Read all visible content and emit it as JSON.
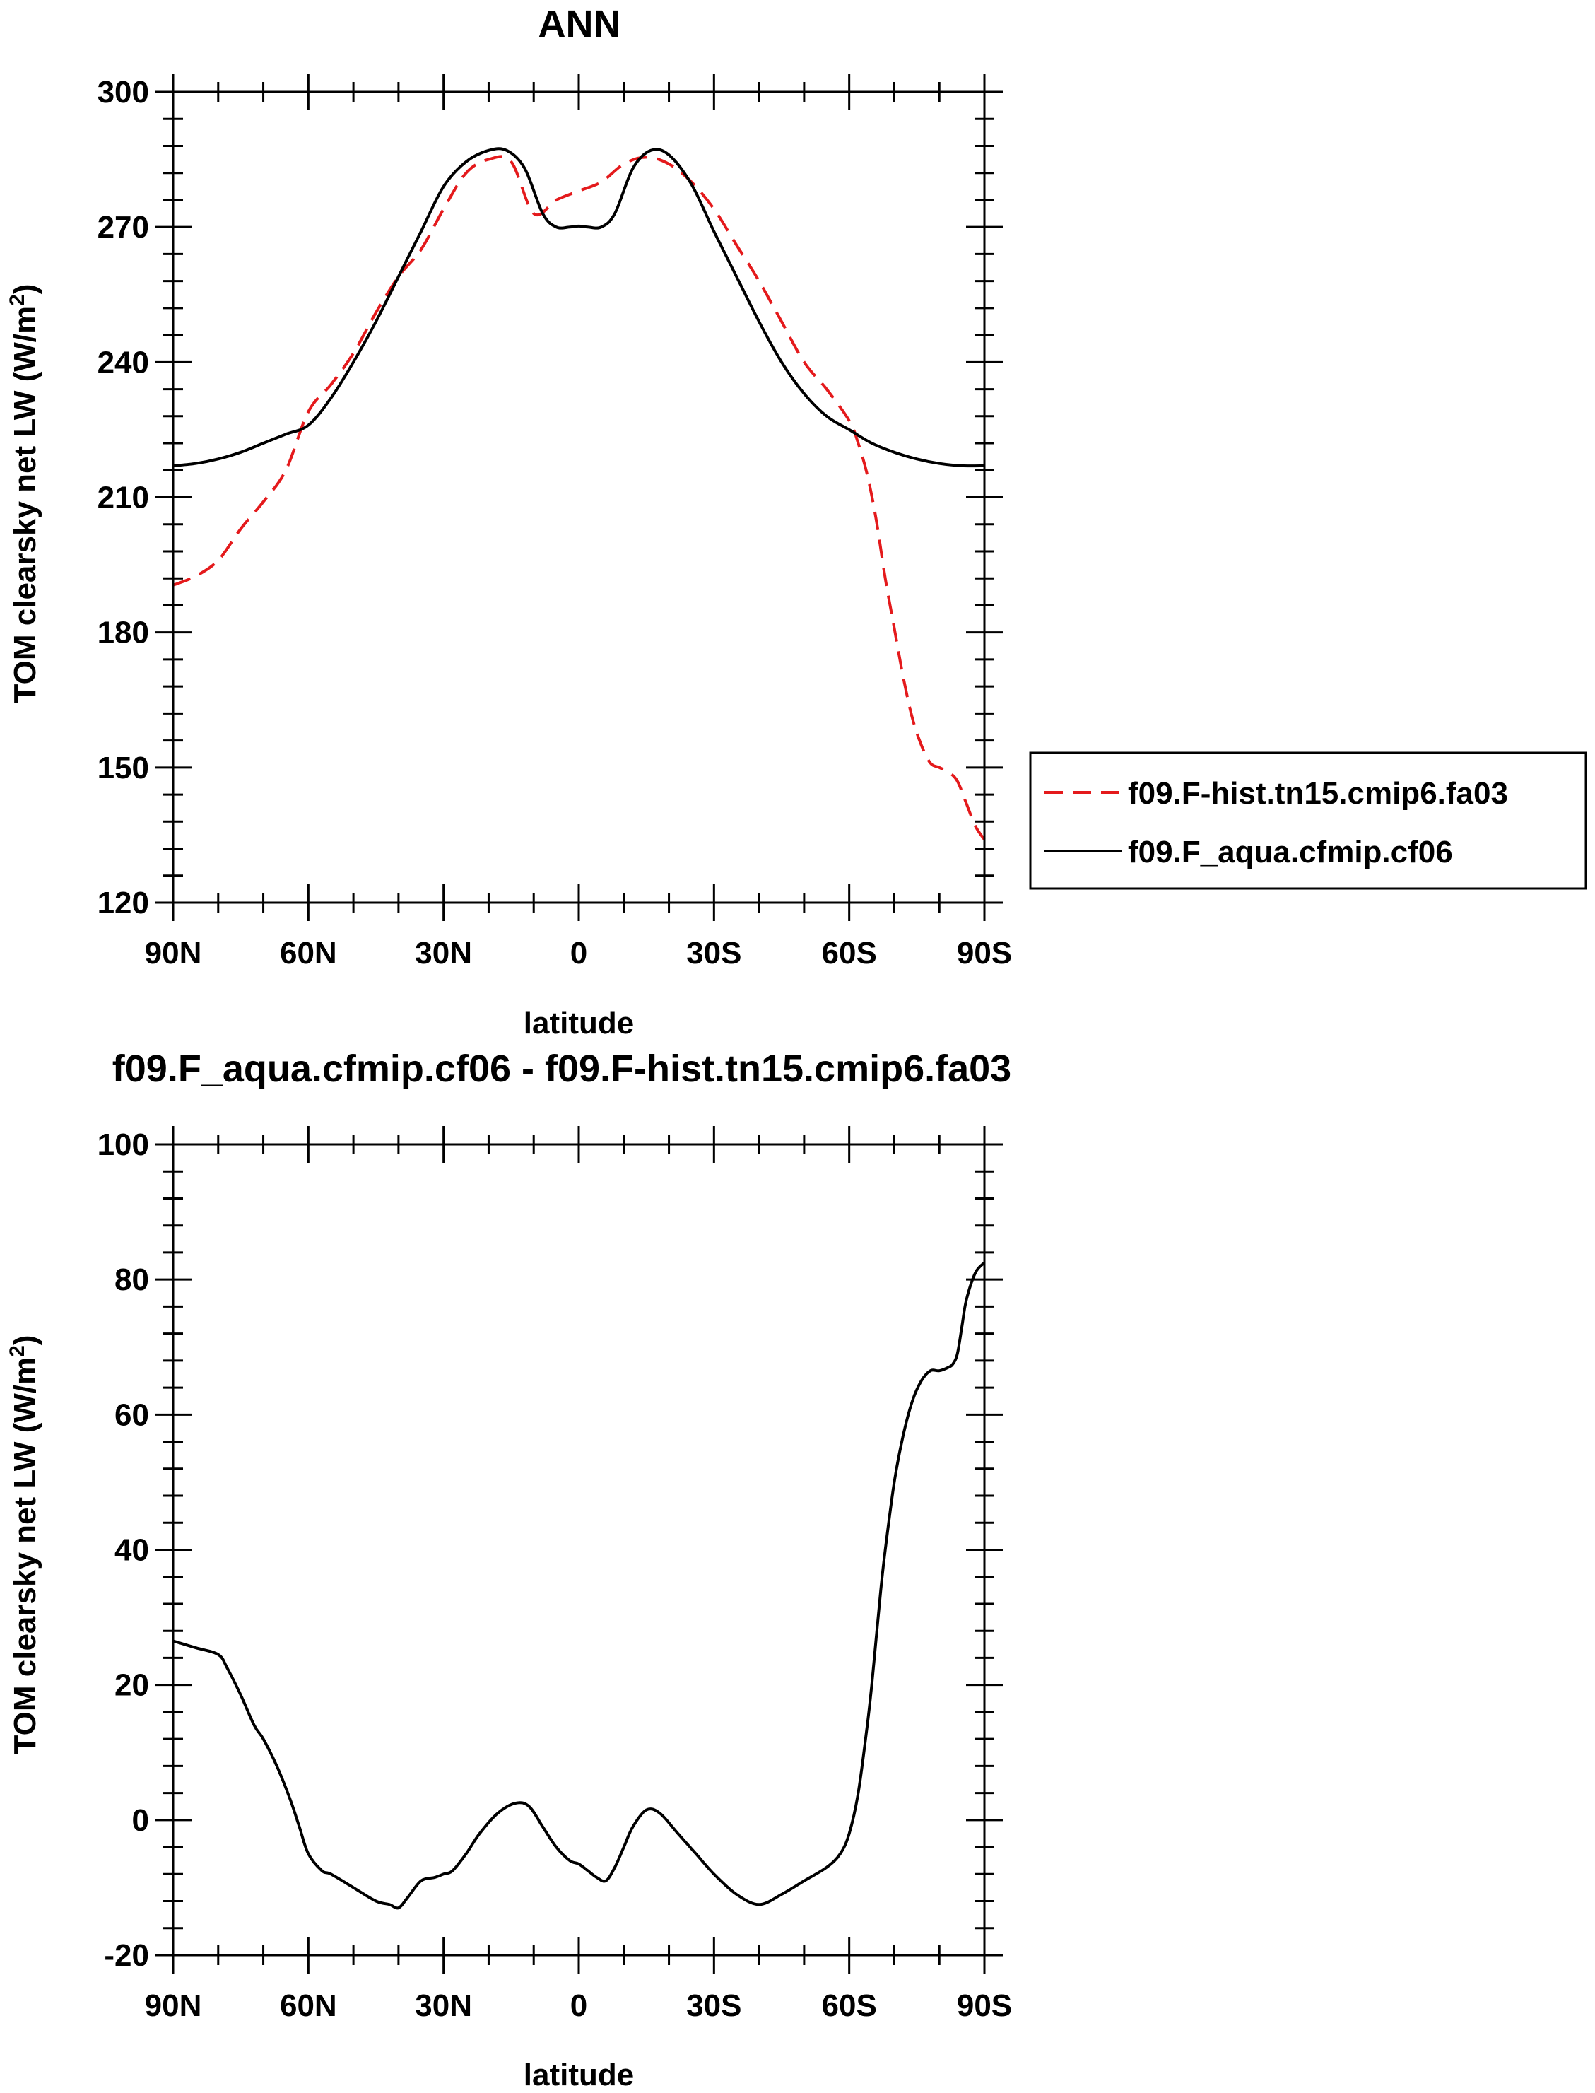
{
  "chart_data": [
    {
      "type": "line",
      "title": "ANN",
      "xlabel": "latitude",
      "ylabel": "TOM clearsky net LW (W/m²)",
      "ylabel_main": "TOM clearsky net LW (W/m",
      "ylabel_sup": "2",
      "ylabel_close": ")",
      "xlim": [
        90,
        -90
      ],
      "ylim": [
        120,
        300
      ],
      "x_ticks": [
        90,
        60,
        30,
        0,
        -30,
        -60,
        -90
      ],
      "x_tick_labels": [
        "90N",
        "60N",
        "30N",
        "0",
        "30S",
        "60S",
        "90S"
      ],
      "y_ticks": [
        120,
        150,
        180,
        210,
        240,
        270,
        300
      ],
      "y_tick_labels": [
        "120",
        "150",
        "180",
        "210",
        "240",
        "270",
        "300"
      ],
      "legend_position": "right",
      "series": [
        {
          "name": "f09.F-hist.tn15.cmip6.fa03",
          "color": "#e41a1c",
          "dash": "dashed",
          "x": [
            90,
            85,
            80,
            75,
            70,
            65,
            60,
            55,
            50,
            45,
            40,
            35,
            30,
            25,
            20,
            15,
            10,
            5,
            0,
            -5,
            -10,
            -15,
            -20,
            -25,
            -30,
            -35,
            -40,
            -45,
            -50,
            -55,
            -60,
            -62,
            -64,
            -66,
            -68,
            -70,
            -72,
            -74,
            -76,
            -78,
            -80,
            -82,
            -84,
            -86,
            -88,
            -90
          ],
          "y": [
            190.5,
            192.5,
            196,
            203,
            209,
            216,
            229,
            235,
            242,
            251,
            259,
            265,
            274,
            282,
            285,
            284.5,
            273,
            276,
            278,
            280,
            284,
            285.5,
            284,
            280,
            274,
            266,
            258,
            249,
            240,
            234,
            227,
            222,
            215,
            205,
            192,
            181,
            170,
            161,
            155,
            151,
            150,
            149,
            147,
            142,
            137,
            134
          ]
        },
        {
          "name": "f09.F_aqua.cfmip.cf06",
          "color": "#000000",
          "dash": "solid",
          "x": [
            90,
            85,
            80,
            75,
            70,
            65,
            60,
            55,
            50,
            45,
            40,
            35,
            30,
            25,
            20,
            16,
            12,
            8,
            5,
            2,
            0,
            -2,
            -5,
            -8,
            -12,
            -16,
            -20,
            -25,
            -30,
            -35,
            -40,
            -45,
            -50,
            -55,
            -60,
            -65,
            -70,
            -75,
            -80,
            -85,
            -90
          ],
          "y": [
            217,
            217.5,
            218.5,
            220,
            222,
            224,
            226,
            232,
            240,
            249,
            259,
            269,
            279,
            284.5,
            287,
            287,
            283,
            273,
            270,
            270,
            270.2,
            270,
            270,
            273,
            283,
            287,
            286,
            279.5,
            269,
            259,
            249,
            240,
            233,
            228,
            225,
            222,
            220,
            218.5,
            217.5,
            217,
            217
          ]
        }
      ]
    },
    {
      "type": "line",
      "title": "f09.F_aqua.cfmip.cf06 - f09.F-hist.tn15.cmip6.fa03",
      "xlabel": "latitude",
      "ylabel": "TOM clearsky net LW (W/m²)",
      "ylabel_main": "TOM clearsky net LW (W/m",
      "ylabel_sup": "2",
      "ylabel_close": ")",
      "xlim": [
        90,
        -90
      ],
      "ylim": [
        -20,
        100
      ],
      "x_ticks": [
        90,
        60,
        30,
        0,
        -30,
        -60,
        -90
      ],
      "x_tick_labels": [
        "90N",
        "60N",
        "30N",
        "0",
        "30S",
        "60S",
        "90S"
      ],
      "y_ticks": [
        -20,
        0,
        20,
        40,
        60,
        80,
        100
      ],
      "y_tick_labels": [
        "-20",
        "0",
        "20",
        "40",
        "60",
        "80",
        "100"
      ],
      "series": [
        {
          "name": "f09.F_aqua.cfmip.cf06 - f09.F-hist.tn15.cmip6.fa03",
          "color": "#000000",
          "dash": "solid",
          "x": [
            90,
            85,
            80,
            78,
            75,
            72,
            70,
            67,
            64,
            62,
            60,
            57,
            55,
            50,
            45,
            42,
            40,
            38,
            35,
            32,
            30,
            28,
            25,
            22,
            18,
            14,
            11,
            8,
            5,
            2,
            0,
            -2,
            -4,
            -6,
            -8,
            -10,
            -12,
            -15,
            -18,
            -22,
            -26,
            -30,
            -35,
            -40,
            -45,
            -50,
            -55,
            -58,
            -60,
            -62,
            -64,
            -65,
            -66,
            -67,
            -68,
            -70,
            -72,
            -74,
            -76,
            -78,
            -80,
            -82,
            -83,
            -84,
            -85,
            -86,
            -88,
            -90
          ],
          "y": [
            26.5,
            25.5,
            24.5,
            22.5,
            18.5,
            14,
            12,
            8,
            3,
            -1,
            -5,
            -7.5,
            -8,
            -10,
            -12,
            -12.5,
            -13,
            -11.5,
            -9,
            -8.5,
            -8,
            -7.5,
            -5,
            -2,
            1,
            2.5,
            2,
            -1,
            -4,
            -6,
            -6.5,
            -7.5,
            -8.5,
            -9,
            -7,
            -4,
            -1,
            1.5,
            1,
            -2,
            -5,
            -8,
            -11,
            -12.5,
            -11,
            -9,
            -7,
            -5,
            -2,
            4,
            14,
            20,
            27,
            34,
            40,
            50,
            57,
            62,
            65,
            66.5,
            66.5,
            67,
            67.5,
            69,
            73,
            77,
            81,
            82.5
          ]
        }
      ]
    }
  ]
}
